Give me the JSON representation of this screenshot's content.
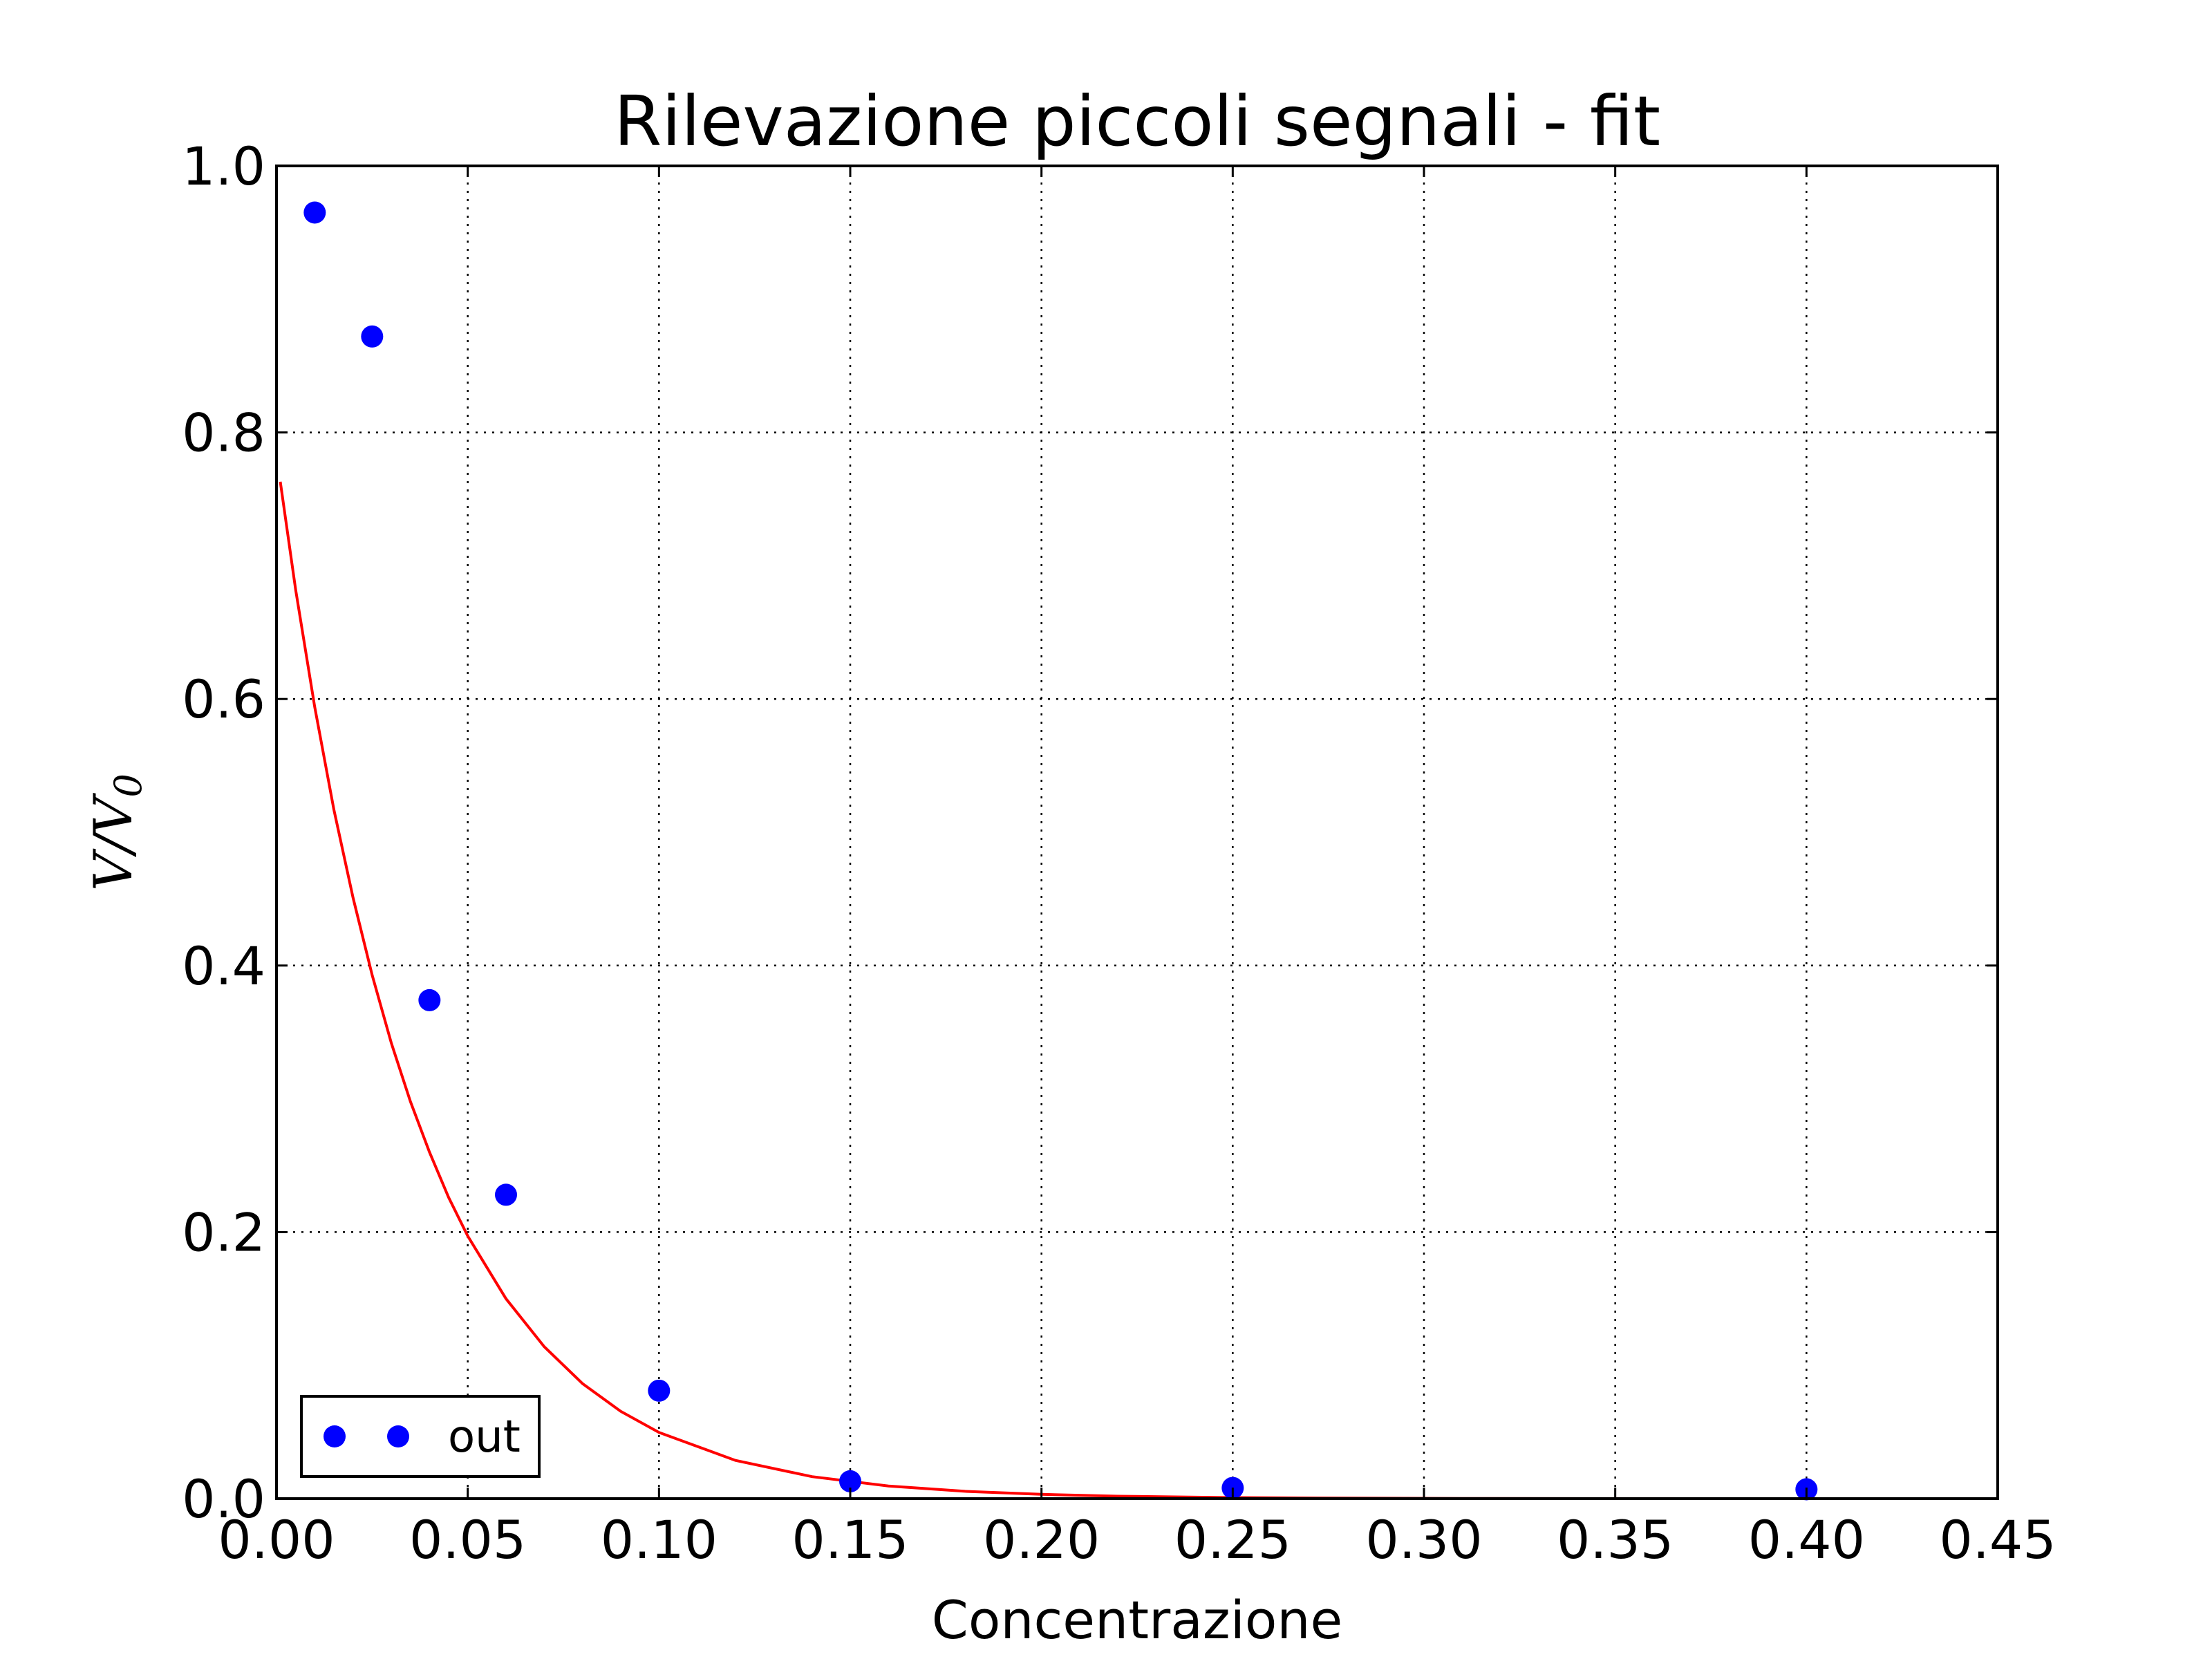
{
  "chart_data": {
    "type": "scatter",
    "title": "Rilevazione piccoli segnali - fit",
    "xlabel": "Concentrazione",
    "ylabel": "V/V",
    "ylabel_subscript": "0",
    "xlim": [
      0.0,
      0.45
    ],
    "ylim": [
      0.0,
      1.0
    ],
    "xticks": [
      0.0,
      0.05,
      0.1,
      0.15,
      0.2,
      0.25,
      0.3,
      0.35,
      0.4,
      0.45
    ],
    "xtick_labels": [
      "0.00",
      "0.05",
      "0.10",
      "0.15",
      "0.20",
      "0.25",
      "0.30",
      "0.35",
      "0.40",
      "0.45"
    ],
    "yticks": [
      0.0,
      0.2,
      0.4,
      0.6,
      0.8,
      1.0
    ],
    "ytick_labels": [
      "0.0",
      "0.2",
      "0.4",
      "0.6",
      "0.8",
      "1.0"
    ],
    "grid": true,
    "legend_position": "lower-left",
    "series": [
      {
        "name": "out",
        "kind": "scatter",
        "color": "#0000ff",
        "x": [
          0.01,
          0.025,
          0.04,
          0.06,
          0.1,
          0.15,
          0.25,
          0.4
        ],
        "y": [
          0.965,
          0.872,
          0.374,
          0.228,
          0.081,
          0.013,
          0.008,
          0.007
        ]
      },
      {
        "kind": "line",
        "color": "#ff0000",
        "x": [
          0.001,
          0.005,
          0.01,
          0.015,
          0.02,
          0.025,
          0.03,
          0.035,
          0.04,
          0.045,
          0.05,
          0.06,
          0.07,
          0.08,
          0.09,
          0.1,
          0.12,
          0.14,
          0.16,
          0.18,
          0.2,
          0.22,
          0.25,
          0.28,
          0.31,
          0.35,
          0.4,
          0.44
        ],
        "y": [
          0.763,
          0.682,
          0.594,
          0.517,
          0.451,
          0.393,
          0.342,
          0.298,
          0.26,
          0.226,
          0.197,
          0.15,
          0.114,
          0.0863,
          0.0655,
          0.0497,
          0.0287,
          0.0165,
          0.0095,
          0.0055,
          0.0032,
          0.0018,
          0.0008,
          0.00035,
          0.00015,
          5e-05,
          1e-05,
          0.0
        ]
      }
    ]
  }
}
